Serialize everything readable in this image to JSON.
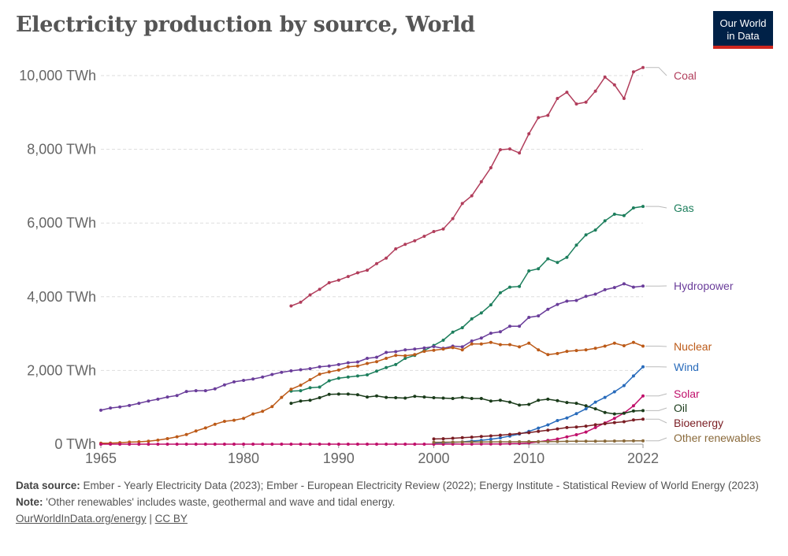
{
  "header": {
    "title": "Electricity production by source, World",
    "logo_line1": "Our World",
    "logo_line2": "in Data"
  },
  "footer": {
    "source_label": "Data source:",
    "source_text": "Ember - Yearly Electricity Data (2023); Ember - European Electricity Review (2022); Energy Institute - Statistical Review of World Energy (2023)",
    "note_label": "Note:",
    "note_text": "'Other renewables' includes waste, geothermal and wave and tidal energy.",
    "link_text": "OurWorldInData.org/energy",
    "separator": "|",
    "license_text": "CC BY"
  },
  "chart_data": {
    "type": "line",
    "title": "Electricity production by source, World",
    "xlim": [
      1965,
      2022
    ],
    "ylim": [
      0,
      10000
    ],
    "x_ticks": [
      1965,
      1980,
      1990,
      2000,
      2010,
      2022
    ],
    "y_ticks": [
      {
        "value": 0,
        "label": "0 TWh"
      },
      {
        "value": 2000,
        "label": "2,000 TWh"
      },
      {
        "value": 4000,
        "label": "4,000 TWh"
      },
      {
        "value": 6000,
        "label": "6,000 TWh"
      },
      {
        "value": 8000,
        "label": "8,000 TWh"
      },
      {
        "value": 10000,
        "label": "10,000 TWh"
      }
    ],
    "grid": true,
    "legend": "inline-right",
    "series": [
      {
        "name": "Coal",
        "color": "#b13d5b",
        "start": 1985,
        "values": [
          3750,
          3850,
          4050,
          4200,
          4380,
          4450,
          4550,
          4650,
          4720,
          4900,
          5050,
          5300,
          5420,
          5520,
          5640,
          5770,
          5840,
          6120,
          6530,
          6740,
          7120,
          7500,
          7990,
          8010,
          7900,
          8420,
          8860,
          8920,
          9380,
          9550,
          9230,
          9280,
          9580,
          9960,
          9750,
          9380,
          10100,
          10220
        ]
      },
      {
        "name": "Gas",
        "color": "#1c7e5c",
        "start": 1985,
        "values": [
          1440,
          1450,
          1530,
          1550,
          1720,
          1790,
          1820,
          1850,
          1880,
          1980,
          2080,
          2160,
          2330,
          2410,
          2540,
          2680,
          2820,
          3040,
          3160,
          3400,
          3560,
          3780,
          4110,
          4260,
          4280,
          4700,
          4760,
          5030,
          4930,
          5070,
          5400,
          5680,
          5810,
          6060,
          6240,
          6200,
          6410,
          6450
        ]
      },
      {
        "name": "Hydropower",
        "color": "#6a3d9a",
        "start": 1965,
        "values": [
          920,
          980,
          1010,
          1050,
          1110,
          1170,
          1220,
          1280,
          1320,
          1430,
          1450,
          1450,
          1500,
          1610,
          1690,
          1730,
          1770,
          1820,
          1890,
          1950,
          1990,
          2020,
          2050,
          2100,
          2120,
          2160,
          2210,
          2230,
          2330,
          2360,
          2490,
          2510,
          2560,
          2580,
          2610,
          2650,
          2600,
          2660,
          2640,
          2800,
          2880,
          3010,
          3050,
          3200,
          3200,
          3440,
          3480,
          3660,
          3790,
          3880,
          3900,
          4010,
          4070,
          4190,
          4250,
          4350,
          4260,
          4290
        ]
      },
      {
        "name": "Nuclear",
        "color": "#bc5a18",
        "start": 1965,
        "values": [
          25,
          30,
          40,
          55,
          65,
          80,
          110,
          150,
          200,
          260,
          360,
          440,
          540,
          620,
          650,
          700,
          820,
          890,
          1020,
          1270,
          1490,
          1600,
          1750,
          1900,
          1960,
          2010,
          2100,
          2120,
          2190,
          2240,
          2330,
          2410,
          2400,
          2430,
          2520,
          2550,
          2580,
          2620,
          2560,
          2720,
          2720,
          2760,
          2700,
          2700,
          2640,
          2740,
          2560,
          2430,
          2460,
          2520,
          2540,
          2560,
          2600,
          2660,
          2740,
          2670,
          2760,
          2660
        ]
      },
      {
        "name": "Wind",
        "color": "#286bbb",
        "start": 2000,
        "values": [
          30,
          38,
          52,
          63,
          85,
          104,
          133,
          170,
          221,
          276,
          346,
          436,
          523,
          640,
          712,
          830,
          960,
          1140,
          1270,
          1420,
          1590,
          1850,
          2100
        ]
      },
      {
        "name": "Solar",
        "color": "#c0106b",
        "start": 1965,
        "values": [
          0,
          0,
          0,
          0,
          0,
          0,
          0,
          0,
          0,
          0,
          0,
          0,
          0,
          0,
          0,
          0,
          0,
          0,
          0,
          0,
          0,
          0,
          0,
          0,
          0,
          0,
          0,
          0,
          0,
          0,
          0,
          0,
          0,
          0,
          0,
          1,
          1,
          2,
          2,
          3,
          4,
          5,
          6,
          12,
          20,
          32,
          64,
          100,
          138,
          198,
          256,
          330,
          450,
          575,
          700,
          845,
          1040,
          1310
        ]
      },
      {
        "name": "Oil",
        "color": "#1a3b1a",
        "start": 1985,
        "values": [
          1110,
          1170,
          1190,
          1260,
          1350,
          1360,
          1360,
          1340,
          1280,
          1310,
          1270,
          1260,
          1250,
          1300,
          1280,
          1260,
          1250,
          1240,
          1270,
          1240,
          1240,
          1170,
          1190,
          1140,
          1060,
          1080,
          1190,
          1220,
          1180,
          1130,
          1110,
          1040,
          960,
          860,
          820,
          840,
          900,
          910
        ]
      },
      {
        "name": "Bioenergy",
        "color": "#7a1d23",
        "start": 2000,
        "values": [
          140,
          148,
          160,
          175,
          190,
          208,
          225,
          243,
          265,
          290,
          312,
          346,
          378,
          415,
          450,
          465,
          490,
          525,
          555,
          586,
          610,
          655,
          680
        ]
      },
      {
        "name": "Other renewables",
        "color": "#8a6a3b",
        "start": 2000,
        "values": [
          52,
          54,
          56,
          58,
          59,
          60,
          62,
          64,
          65,
          66,
          68,
          70,
          71,
          73,
          76,
          78,
          80,
          82,
          84,
          86,
          88,
          91,
          92
        ]
      }
    ]
  }
}
